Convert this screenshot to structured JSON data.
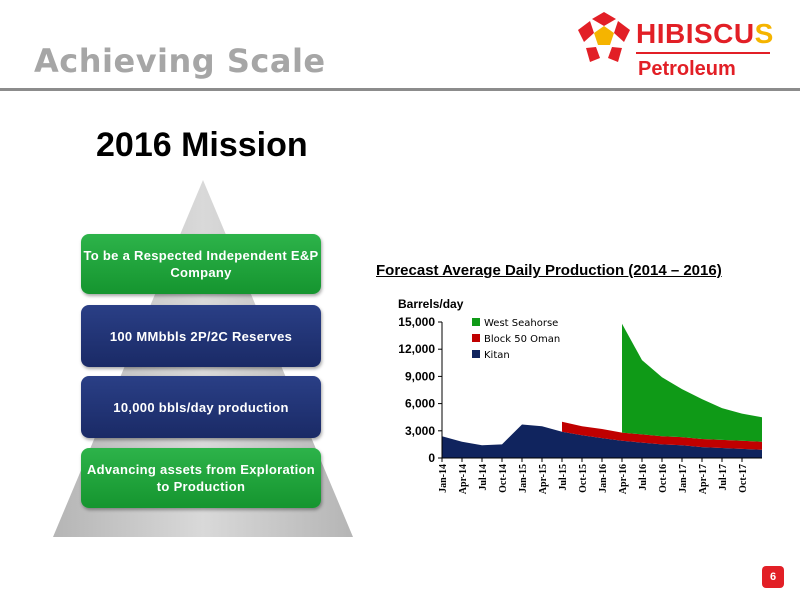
{
  "header": {
    "title": "Achieving Scale",
    "logo": {
      "word1_main": "HIBISCU",
      "word1_accent": "S",
      "word2": "Petroleum"
    }
  },
  "mission": {
    "title": "2016 Mission",
    "tiers": [
      {
        "label": "To be a Respected Independent E&P Company"
      },
      {
        "label": "100 MMbbls 2P/2C Reserves"
      },
      {
        "label": "10,000 bbls/day production"
      },
      {
        "label": "Advancing assets from Exploration to Production"
      }
    ]
  },
  "colors": {
    "west_seahorse": "#0f9a17",
    "block_50_oman": "#c00000",
    "kitan": "#10245e",
    "brand_red": "#e21f26",
    "brand_yellow": "#f5b400",
    "pyramid_grey": "#c8c8c8"
  },
  "chart_data": {
    "type": "area",
    "title": "Forecast Average Daily Production (2014 – 2016)",
    "ylabel": "Barrels/day",
    "ylim": [
      0,
      15000
    ],
    "yticks": [
      "0",
      "3,000",
      "6,000",
      "9,000",
      "12,000",
      "15,000"
    ],
    "legend_position": "top-left",
    "x_tick_labels": [
      "Jan-14",
      "Apr-14",
      "Jul-14",
      "Oct-14",
      "Jan-15",
      "Apr-15",
      "Jul-15",
      "Oct-15",
      "Jan-16",
      "Apr-16",
      "Jul-16",
      "Oct-16",
      "Jan-17",
      "Apr-17",
      "Jul-17",
      "Oct-17"
    ],
    "x": [
      "Jan-14",
      "Apr-14",
      "Jul-14",
      "Oct-14",
      "Jan-15",
      "Apr-15",
      "Jul-15",
      "Oct-15",
      "Jan-16",
      "Apr-16",
      "Jul-16",
      "Oct-16",
      "Jan-17",
      "Apr-17",
      "Jul-17",
      "Oct-17",
      "Dec-17"
    ],
    "series": [
      {
        "name": "Kitan",
        "values": [
          2400,
          1800,
          1400,
          1500,
          3700,
          3500,
          2900,
          2500,
          2200,
          1900,
          1700,
          1500,
          1400,
          1200,
          1100,
          1000,
          900
        ]
      },
      {
        "name": "Block 50 Oman",
        "values": [
          0,
          0,
          0,
          0,
          0,
          0,
          1100,
          1000,
          1000,
          900,
          900,
          900,
          900,
          900,
          900,
          900,
          900
        ]
      },
      {
        "name": "West Seahorse",
        "values": [
          0,
          0,
          0,
          0,
          0,
          0,
          0,
          0,
          0,
          12000,
          8200,
          6500,
          5300,
          4400,
          3500,
          3000,
          2700
        ]
      }
    ]
  },
  "page_number": "6"
}
